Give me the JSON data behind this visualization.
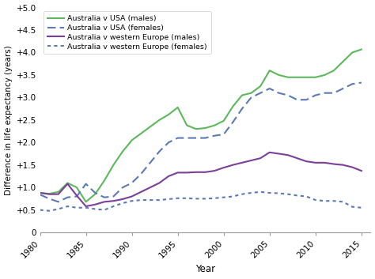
{
  "ylabel": "Difference in life expectancy (years)",
  "xlabel": "Year",
  "ylim": [
    0,
    5.0
  ],
  "xlim": [
    1980,
    2016
  ],
  "xticks": [
    1980,
    1985,
    1990,
    1995,
    2000,
    2005,
    2010,
    2015
  ],
  "yticks": [
    0,
    0.5,
    1.0,
    1.5,
    2.0,
    2.5,
    3.0,
    3.5,
    4.0,
    4.5,
    5.0
  ],
  "ytick_labels": [
    "0",
    "+0.5",
    "+1.0",
    "+1.5",
    "+2.0",
    "+2.5",
    "+3.0",
    "+3.5",
    "+4.0",
    "+4.5",
    "+5.0"
  ],
  "series": [
    {
      "key": "aus_usa_males",
      "label": "Australia v USA (males)",
      "color": "#5cb85c",
      "linestyle": "solid",
      "linewidth": 1.5,
      "years": [
        1980,
        1981,
        1982,
        1983,
        1984,
        1985,
        1986,
        1987,
        1988,
        1989,
        1990,
        1991,
        1992,
        1993,
        1994,
        1995,
        1996,
        1997,
        1998,
        1999,
        2000,
        2001,
        2002,
        2003,
        2004,
        2005,
        2006,
        2007,
        2008,
        2009,
        2010,
        2011,
        2012,
        2013,
        2014,
        2015
      ],
      "values": [
        0.88,
        0.86,
        0.9,
        1.1,
        1.0,
        0.68,
        0.85,
        1.15,
        1.5,
        1.8,
        2.05,
        2.2,
        2.35,
        2.5,
        2.62,
        2.78,
        2.38,
        2.3,
        2.32,
        2.38,
        2.48,
        2.8,
        3.05,
        3.1,
        3.25,
        3.6,
        3.5,
        3.45,
        3.45,
        3.45,
        3.45,
        3.5,
        3.6,
        3.8,
        4.0,
        4.07
      ]
    },
    {
      "key": "aus_usa_females",
      "label": "Australia v USA (females)",
      "color": "#5b7ab5",
      "linestyle": "dashed",
      "linewidth": 1.5,
      "years": [
        1980,
        1981,
        1982,
        1983,
        1984,
        1985,
        1986,
        1987,
        1988,
        1989,
        1990,
        1991,
        1992,
        1993,
        1994,
        1995,
        1996,
        1997,
        1998,
        1999,
        2000,
        2001,
        2002,
        2003,
        2004,
        2005,
        2006,
        2007,
        2008,
        2009,
        2010,
        2011,
        2012,
        2013,
        2014,
        2015
      ],
      "values": [
        0.84,
        0.75,
        0.68,
        0.78,
        0.8,
        1.08,
        0.88,
        0.78,
        0.8,
        1.0,
        1.1,
        1.3,
        1.55,
        1.8,
        2.0,
        2.1,
        2.1,
        2.1,
        2.1,
        2.15,
        2.18,
        2.45,
        2.75,
        3.0,
        3.1,
        3.2,
        3.1,
        3.05,
        2.95,
        2.95,
        3.05,
        3.1,
        3.1,
        3.2,
        3.3,
        3.33
      ]
    },
    {
      "key": "aus_we_males",
      "label": "Australia v western Europe (males)",
      "color": "#7b3f99",
      "linestyle": "solid",
      "linewidth": 1.5,
      "years": [
        1980,
        1981,
        1982,
        1983,
        1984,
        1985,
        1986,
        1987,
        1988,
        1989,
        1990,
        1991,
        1992,
        1993,
        1994,
        1995,
        1996,
        1997,
        1998,
        1999,
        2000,
        2001,
        2002,
        2003,
        2004,
        2005,
        2006,
        2007,
        2008,
        2009,
        2010,
        2011,
        2012,
        2013,
        2014,
        2015
      ],
      "values": [
        0.88,
        0.85,
        0.85,
        1.08,
        0.82,
        0.58,
        0.62,
        0.68,
        0.7,
        0.74,
        0.8,
        0.9,
        1.0,
        1.1,
        1.25,
        1.33,
        1.33,
        1.34,
        1.34,
        1.37,
        1.44,
        1.5,
        1.55,
        1.6,
        1.65,
        1.78,
        1.75,
        1.72,
        1.65,
        1.58,
        1.55,
        1.55,
        1.52,
        1.5,
        1.45,
        1.37
      ]
    },
    {
      "key": "aus_we_females",
      "label": "Australia v western Europe (females)",
      "color": "#5b7ab5",
      "linestyle": "dashed",
      "linewidth": 1.5,
      "dash_pattern": [
        2,
        3
      ],
      "years": [
        1980,
        1981,
        1982,
        1983,
        1984,
        1985,
        1986,
        1987,
        1988,
        1989,
        1990,
        1991,
        1992,
        1993,
        1994,
        1995,
        1996,
        1997,
        1998,
        1999,
        2000,
        2001,
        2002,
        2003,
        2004,
        2005,
        2006,
        2007,
        2008,
        2009,
        2010,
        2011,
        2012,
        2013,
        2014,
        2015
      ],
      "values": [
        0.5,
        0.48,
        0.52,
        0.58,
        0.55,
        0.55,
        0.52,
        0.5,
        0.58,
        0.65,
        0.7,
        0.72,
        0.72,
        0.72,
        0.74,
        0.76,
        0.76,
        0.75,
        0.75,
        0.76,
        0.78,
        0.8,
        0.85,
        0.88,
        0.9,
        0.88,
        0.87,
        0.85,
        0.82,
        0.8,
        0.72,
        0.7,
        0.7,
        0.68,
        0.57,
        0.55
      ]
    }
  ],
  "background_color": "#ffffff"
}
